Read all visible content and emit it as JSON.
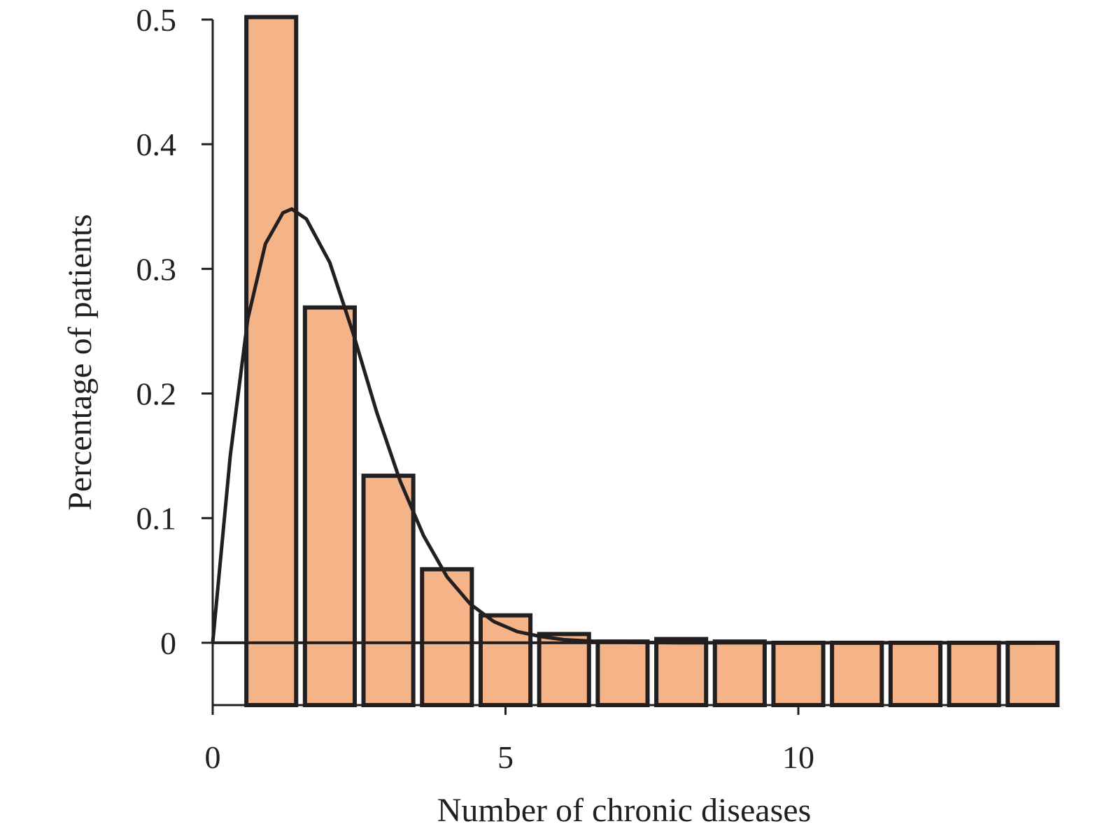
{
  "chart_data": {
    "type": "bar",
    "title": "",
    "xlabel": "Number of chronic diseases",
    "ylabel": "Percentage of patients",
    "xlim": [
      0,
      14.05
    ],
    "ylim": [
      -0.05,
      0.5
    ],
    "x_ticks": [
      0,
      5,
      10
    ],
    "y_ticks": [
      0,
      0.1,
      0.2,
      0.3,
      0.4,
      0.5
    ],
    "x_tick_labels": [
      "0",
      "5",
      "10"
    ],
    "y_tick_labels": [
      "0",
      "0.1",
      "0.2",
      "0.3",
      "0.4",
      "0.5"
    ],
    "bars": [
      {
        "x": 1,
        "value": 0.502
      },
      {
        "x": 2,
        "value": 0.269
      },
      {
        "x": 3,
        "value": 0.134
      },
      {
        "x": 4,
        "value": 0.059
      },
      {
        "x": 5,
        "value": 0.022
      },
      {
        "x": 6,
        "value": 0.007
      },
      {
        "x": 7,
        "value": 0.001
      },
      {
        "x": 8,
        "value": 0.003
      },
      {
        "x": 9,
        "value": 0.001
      },
      {
        "x": 10,
        "value": 0.0
      },
      {
        "x": 11,
        "value": 0.0
      },
      {
        "x": 12,
        "value": 0.0
      },
      {
        "x": 13,
        "value": 0.0
      },
      {
        "x": 14,
        "value": 0.0
      }
    ],
    "bar_baseline": -0.05,
    "bar_width": 0.85,
    "curve": {
      "description": "fitted density curve",
      "points": [
        [
          0.0,
          0.0
        ],
        [
          0.3,
          0.15
        ],
        [
          0.6,
          0.26
        ],
        [
          0.9,
          0.32
        ],
        [
          1.2,
          0.345
        ],
        [
          1.35,
          0.348
        ],
        [
          1.6,
          0.34
        ],
        [
          2.0,
          0.305
        ],
        [
          2.4,
          0.248
        ],
        [
          2.8,
          0.185
        ],
        [
          3.2,
          0.13
        ],
        [
          3.6,
          0.086
        ],
        [
          4.0,
          0.053
        ],
        [
          4.4,
          0.031
        ],
        [
          4.8,
          0.017
        ],
        [
          5.2,
          0.009
        ],
        [
          5.6,
          0.005
        ],
        [
          6.0,
          0.0025
        ],
        [
          6.6,
          0.001
        ],
        [
          7.2,
          0.0003
        ],
        [
          8.0,
          0.0
        ],
        [
          14.05,
          0.0
        ]
      ]
    },
    "colors": {
      "bar_fill": "#f5b488",
      "stroke": "#231f20"
    }
  }
}
